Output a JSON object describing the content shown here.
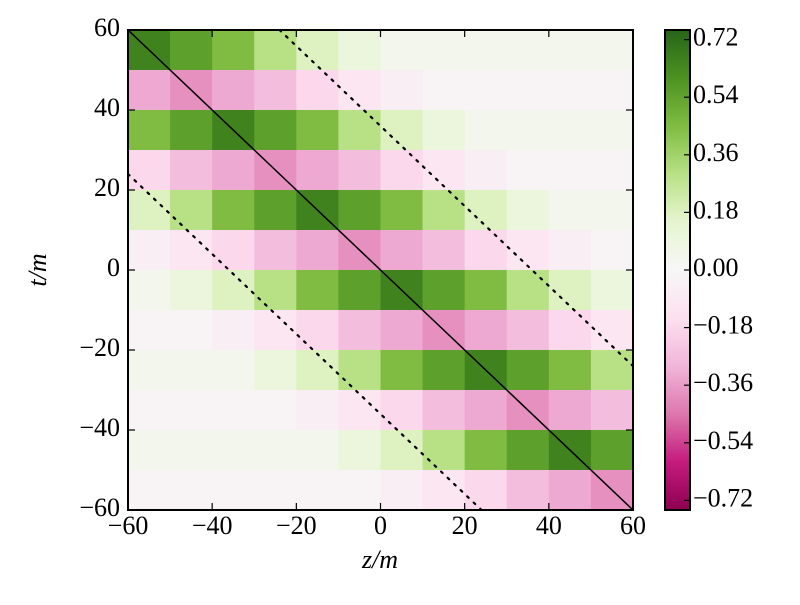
{
  "chart_data": {
    "type": "heatmap",
    "xlabel": "z/m",
    "ylabel": "t/m",
    "xlim": [
      -60,
      60
    ],
    "ylim": [
      -60,
      60
    ],
    "xticks": [
      {
        "value": -60,
        "label": "−60"
      },
      {
        "value": -40,
        "label": "−40"
      },
      {
        "value": -20,
        "label": "−20"
      },
      0,
      20,
      40,
      60
    ],
    "yticks": [
      {
        "value": -60,
        "label": "−60"
      },
      {
        "value": -40,
        "label": "−40"
      },
      {
        "value": -20,
        "label": "−20"
      },
      0,
      20,
      40,
      60
    ],
    "colormap": "PiYG",
    "clim": [
      -0.75,
      0.75
    ],
    "cticks": [
      {
        "value": -0.72,
        "label": "−0.72"
      },
      {
        "value": -0.54,
        "label": "−0.54"
      },
      {
        "value": -0.36,
        "label": "−0.36"
      },
      {
        "value": -0.18,
        "label": "−0.18"
      },
      {
        "value": 0,
        "label": "0.00"
      },
      0.18,
      0.36,
      0.54,
      0.72
    ],
    "z": [
      [
        0.65,
        0.55,
        0.45,
        0.3,
        0.18,
        0.1,
        0.04,
        0.04,
        0.04,
        0.04,
        0.04,
        0.04
      ],
      [
        -0.33,
        -0.39,
        -0.33,
        -0.27,
        -0.18,
        -0.11,
        -0.06,
        -0.02,
        -0.02,
        -0.02,
        -0.02,
        -0.02
      ],
      [
        0.45,
        0.55,
        0.65,
        0.55,
        0.45,
        0.3,
        0.18,
        0.1,
        0.04,
        0.04,
        0.04,
        0.04
      ],
      [
        -0.18,
        -0.27,
        -0.33,
        -0.39,
        -0.33,
        -0.27,
        -0.18,
        -0.11,
        -0.06,
        -0.02,
        -0.02,
        -0.02
      ],
      [
        0.18,
        0.3,
        0.45,
        0.55,
        0.65,
        0.55,
        0.45,
        0.3,
        0.18,
        0.1,
        0.04,
        0.04
      ],
      [
        -0.06,
        -0.11,
        -0.18,
        -0.27,
        -0.33,
        -0.39,
        -0.33,
        -0.27,
        -0.18,
        -0.11,
        -0.06,
        -0.02
      ],
      [
        0.04,
        0.1,
        0.18,
        0.3,
        0.45,
        0.55,
        0.65,
        0.55,
        0.45,
        0.3,
        0.18,
        0.1
      ],
      [
        -0.02,
        -0.02,
        -0.06,
        -0.11,
        -0.18,
        -0.27,
        -0.33,
        -0.39,
        -0.33,
        -0.27,
        -0.18,
        -0.11
      ],
      [
        0.04,
        0.04,
        0.04,
        0.1,
        0.18,
        0.3,
        0.45,
        0.55,
        0.65,
        0.55,
        0.45,
        0.3
      ],
      [
        -0.02,
        -0.02,
        -0.02,
        -0.02,
        -0.06,
        -0.11,
        -0.18,
        -0.27,
        -0.33,
        -0.39,
        -0.33,
        -0.27
      ],
      [
        0.04,
        0.04,
        0.04,
        0.04,
        0.04,
        0.1,
        0.18,
        0.3,
        0.45,
        0.55,
        0.65,
        0.55
      ],
      [
        -0.02,
        -0.02,
        -0.02,
        -0.02,
        -0.02,
        -0.02,
        -0.06,
        -0.11,
        -0.18,
        -0.27,
        -0.33,
        -0.39
      ]
    ],
    "lines": [
      {
        "x": [
          -60,
          60
        ],
        "y": [
          60,
          -60
        ],
        "color": "#000000",
        "style": "solid"
      },
      {
        "x": [
          -24,
          60
        ],
        "y": [
          60,
          -24
        ],
        "color": "#000000",
        "style": "dotted"
      },
      {
        "x": [
          -60,
          24
        ],
        "y": [
          24,
          -60
        ],
        "color": "#000000",
        "style": "dotted"
      }
    ]
  }
}
